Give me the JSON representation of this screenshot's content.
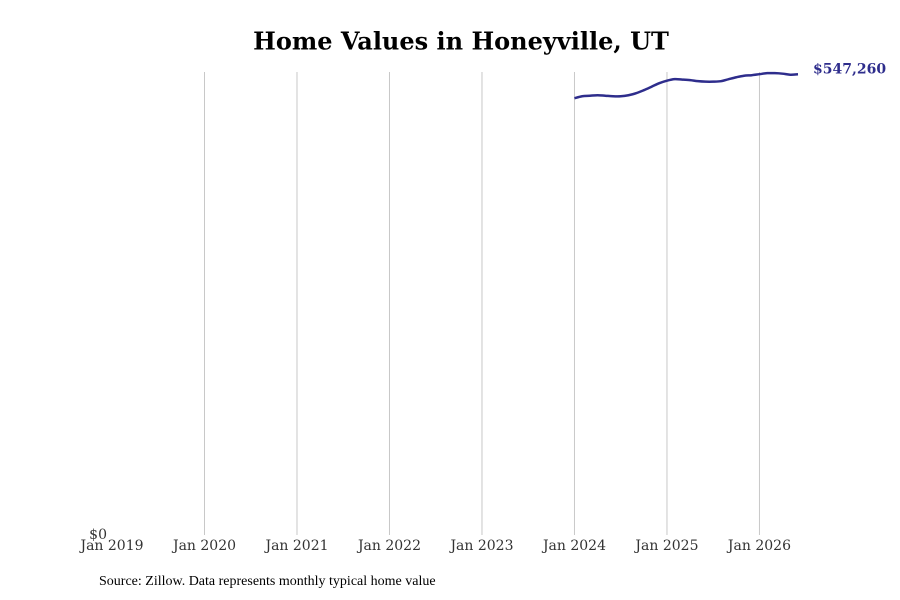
{
  "chart_data": {
    "type": "line",
    "title": "Home Values in Honeyville, UT",
    "source": "Source: Zillow. Data represents monthly typical home value",
    "x": [
      "2024-01",
      "2024-02",
      "2024-03",
      "2024-04",
      "2024-05",
      "2024-06",
      "2024-07",
      "2024-08",
      "2024-09",
      "2024-10",
      "2024-11",
      "2024-12",
      "2025-01",
      "2025-02",
      "2025-03",
      "2025-04",
      "2025-05",
      "2025-06",
      "2025-07",
      "2025-08",
      "2025-09",
      "2025-10",
      "2025-11",
      "2025-12",
      "2026-01",
      "2026-02",
      "2026-03",
      "2026-04",
      "2026-05",
      "2026-06"
    ],
    "series": [
      {
        "name": "Honeyville, UT",
        "color": "#2e2d8c",
        "values": [
          518800,
          521200,
          521800,
          522400,
          521800,
          521200,
          521200,
          522400,
          524800,
          528400,
          532500,
          536700,
          539700,
          541500,
          541000,
          540300,
          539100,
          538500,
          538500,
          539100,
          541500,
          543800,
          545600,
          546200,
          547400,
          548600,
          548600,
          548000,
          546800,
          547260
        ],
        "value_labels": [
          null,
          null,
          null,
          null,
          null,
          null,
          null,
          null,
          null,
          null,
          null,
          null,
          null,
          null,
          null,
          null,
          null,
          null,
          null,
          null,
          null,
          null,
          null,
          null,
          null,
          null,
          null,
          null,
          null,
          "$547,260"
        ]
      }
    ],
    "xlim": [
      "2019-01",
      "2026-06"
    ],
    "xticks": [
      {
        "value": "2019-01",
        "label": "Jan 2019"
      },
      {
        "value": "2020-01",
        "label": "Jan 2020"
      },
      {
        "value": "2021-01",
        "label": "Jan 2021"
      },
      {
        "value": "2022-01",
        "label": "Jan 2022"
      },
      {
        "value": "2023-01",
        "label": "Jan 2023"
      },
      {
        "value": "2024-01",
        "label": "Jan 2024"
      },
      {
        "value": "2025-01",
        "label": "Jan 2025"
      },
      {
        "value": "2026-01",
        "label": "Jan 2026"
      }
    ],
    "ylim": [
      0,
      550000
    ],
    "yticks": [
      {
        "value": 0,
        "label": "$0"
      }
    ],
    "grid": "x"
  }
}
